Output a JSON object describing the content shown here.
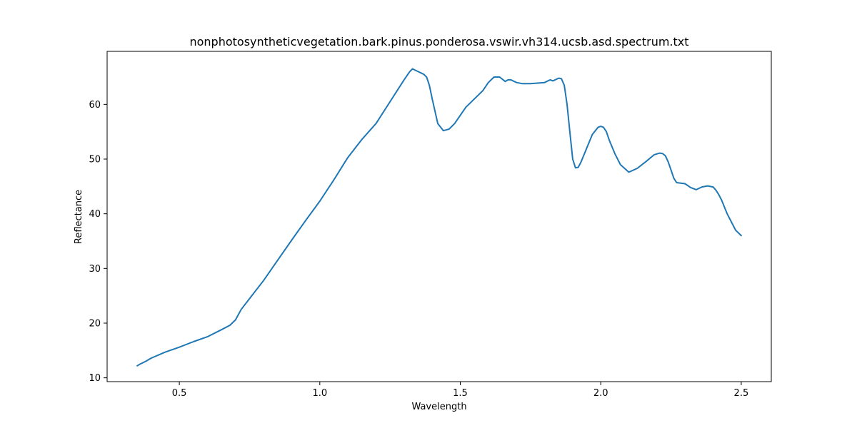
{
  "chart_data": {
    "type": "line",
    "title": "nonphotosyntheticvegetation.bark.pinus.ponderosa.vswir.vh314.ucsb.asd.spectrum.txt",
    "xlabel": "Wavelength",
    "ylabel": "Reflectance",
    "xlim": [
      0.243,
      2.607
    ],
    "ylim": [
      9.3,
      69.7
    ],
    "xticks": [
      0.5,
      1.0,
      1.5,
      2.0,
      2.5
    ],
    "xtick_labels": [
      "0.5",
      "1.0",
      "1.5",
      "2.0",
      "2.5"
    ],
    "yticks": [
      10,
      20,
      30,
      40,
      50,
      60
    ],
    "ytick_labels": [
      "10",
      "20",
      "30",
      "40",
      "50",
      "60"
    ],
    "grid": false,
    "series": [
      {
        "color": "#1f77b4",
        "x": [
          0.35,
          0.36,
          0.38,
          0.4,
          0.45,
          0.5,
          0.55,
          0.6,
          0.65,
          0.68,
          0.7,
          0.72,
          0.75,
          0.8,
          0.85,
          0.9,
          0.95,
          1.0,
          1.05,
          1.1,
          1.15,
          1.2,
          1.25,
          1.3,
          1.32,
          1.33,
          1.35,
          1.37,
          1.38,
          1.39,
          1.4,
          1.42,
          1.44,
          1.46,
          1.48,
          1.5,
          1.52,
          1.55,
          1.58,
          1.6,
          1.62,
          1.64,
          1.66,
          1.67,
          1.68,
          1.7,
          1.72,
          1.75,
          1.8,
          1.82,
          1.83,
          1.85,
          1.86,
          1.87,
          1.88,
          1.89,
          1.9,
          1.91,
          1.92,
          1.93,
          1.95,
          1.97,
          1.99,
          2.0,
          2.01,
          2.02,
          2.03,
          2.05,
          2.07,
          2.1,
          2.13,
          2.16,
          2.19,
          2.21,
          2.22,
          2.23,
          2.24,
          2.25,
          2.26,
          2.27,
          2.3,
          2.32,
          2.34,
          2.36,
          2.38,
          2.4,
          2.41,
          2.42,
          2.43,
          2.45,
          2.47,
          2.48,
          2.49,
          2.5
        ],
        "y": [
          12.2,
          12.5,
          13.0,
          13.6,
          14.7,
          15.6,
          16.6,
          17.5,
          18.8,
          19.6,
          20.6,
          22.5,
          24.5,
          27.8,
          31.5,
          35.2,
          38.8,
          42.3,
          46.2,
          50.3,
          53.6,
          56.5,
          60.5,
          64.5,
          66.0,
          66.5,
          66.0,
          65.5,
          65.0,
          63.5,
          61.0,
          56.5,
          55.2,
          55.5,
          56.5,
          58.0,
          59.5,
          61.0,
          62.5,
          64.0,
          65.0,
          65.0,
          64.2,
          64.5,
          64.5,
          64.0,
          63.8,
          63.8,
          64.0,
          64.5,
          64.3,
          64.8,
          64.7,
          63.5,
          60.0,
          55.0,
          50.0,
          48.4,
          48.5,
          49.5,
          52.0,
          54.5,
          55.8,
          56.0,
          55.8,
          55.0,
          53.5,
          51.0,
          49.0,
          47.6,
          48.3,
          49.5,
          50.8,
          51.1,
          51.0,
          50.6,
          49.5,
          48.0,
          46.5,
          45.7,
          45.5,
          44.8,
          44.4,
          44.9,
          45.1,
          44.9,
          44.3,
          43.5,
          42.5,
          40.0,
          38.0,
          37.0,
          36.5,
          36.0
        ]
      }
    ]
  }
}
